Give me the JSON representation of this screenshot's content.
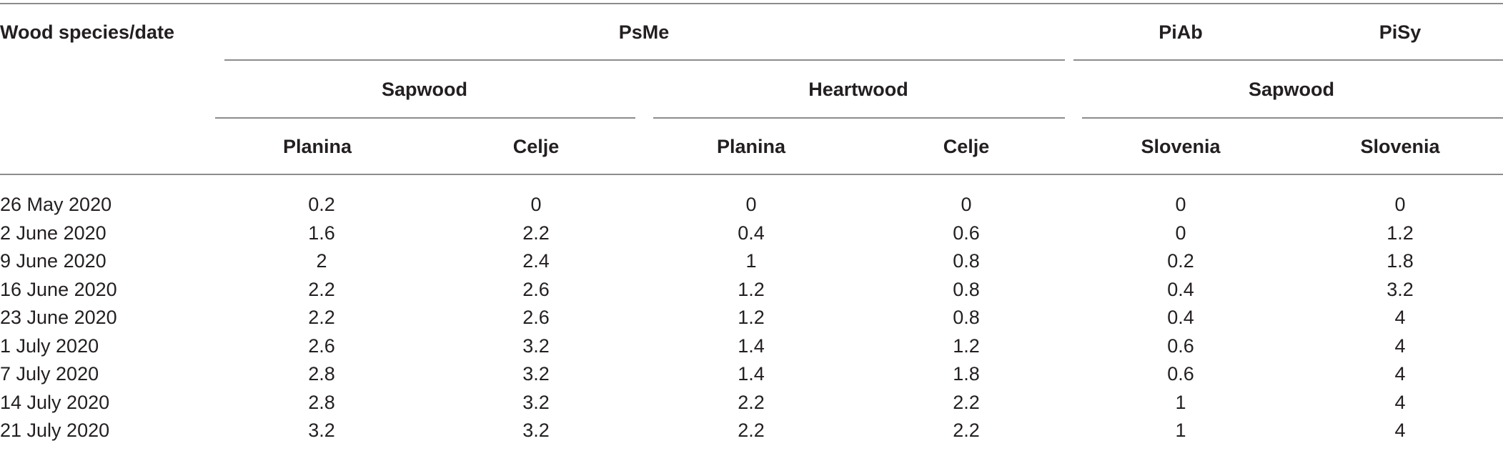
{
  "table": {
    "corner_header": "Wood species/date",
    "species": [
      "PsMe",
      "PiAb",
      "PiSy"
    ],
    "wood_types": [
      "Sapwood",
      "Heartwood",
      "Sapwood"
    ],
    "locations": [
      "Planina",
      "Celje",
      "Planina",
      "Celje",
      "Slovenia",
      "Slovenia"
    ],
    "rows": [
      {
        "date": "26 May 2020",
        "values": [
          "0.2",
          "0",
          "0",
          "0",
          "0",
          "0"
        ]
      },
      {
        "date": "2 June 2020",
        "values": [
          "1.6",
          "2.2",
          "0.4",
          "0.6",
          "0",
          "1.2"
        ]
      },
      {
        "date": "9 June 2020",
        "values": [
          "2",
          "2.4",
          "1",
          "0.8",
          "0.2",
          "1.8"
        ]
      },
      {
        "date": "16 June 2020",
        "values": [
          "2.2",
          "2.6",
          "1.2",
          "0.8",
          "0.4",
          "3.2"
        ]
      },
      {
        "date": "23 June 2020",
        "values": [
          "2.2",
          "2.6",
          "1.2",
          "0.8",
          "0.4",
          "4"
        ]
      },
      {
        "date": "1 July 2020",
        "values": [
          "2.6",
          "3.2",
          "1.4",
          "1.2",
          "0.6",
          "4"
        ]
      },
      {
        "date": "7 July 2020",
        "values": [
          "2.8",
          "3.2",
          "1.4",
          "1.8",
          "0.6",
          "4"
        ]
      },
      {
        "date": "14 July 2020",
        "values": [
          "2.8",
          "3.2",
          "2.2",
          "2.2",
          "1",
          "4"
        ]
      },
      {
        "date": "21 July 2020",
        "values": [
          "3.2",
          "3.2",
          "2.2",
          "2.2",
          "1",
          "4"
        ]
      }
    ]
  }
}
